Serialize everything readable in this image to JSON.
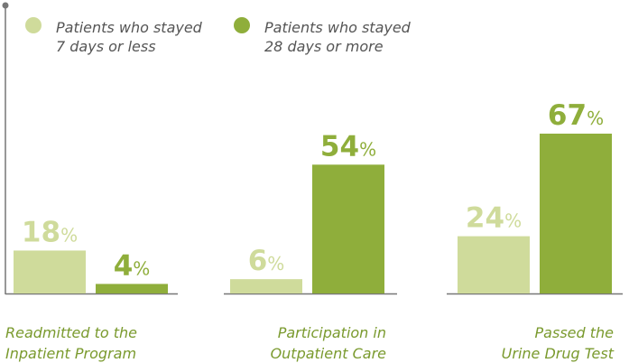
{
  "chart_data": {
    "type": "bar",
    "categories": [
      "Readmitted to the\nInpatient Program",
      "Participation in\nOutpatient Care",
      "Passed the\nUrine Drug Test"
    ],
    "series": [
      {
        "name": "Patients who stayed\n7 days or less",
        "color": "#cfdb9b",
        "values": [
          18,
          6,
          24
        ],
        "value_labels": [
          "18%",
          "6%",
          "24%"
        ]
      },
      {
        "name": "Patients who stayed\n28 days or more",
        "color": "#8fae3b",
        "values": [
          4,
          54,
          67
        ],
        "value_labels": [
          "4%",
          "54%",
          "67%"
        ]
      }
    ],
    "legend": "top-left"
  }
}
